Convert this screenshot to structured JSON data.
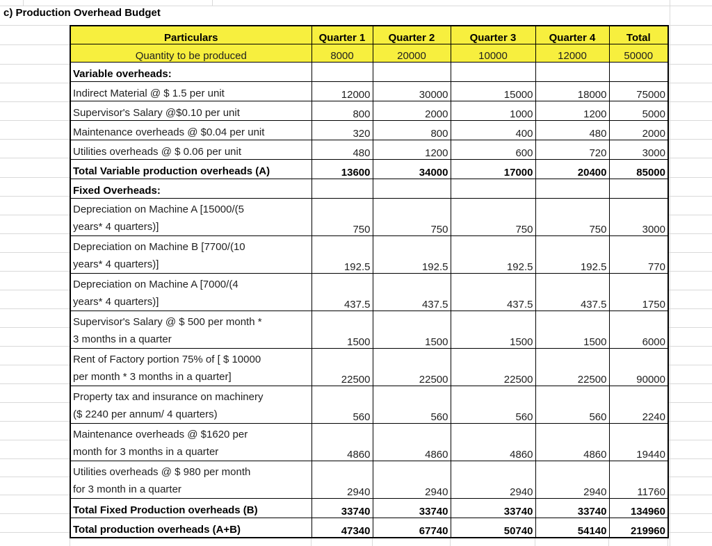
{
  "sheet": {
    "title": "c) Production Overhead Budget"
  },
  "colors": {
    "header_fill": "#f7ef3e",
    "cell_border": "#000000",
    "gridline": "#d9d9d9"
  },
  "table": {
    "columns": [
      "Particulars",
      "Quarter 1",
      "Quarter 2",
      "Quarter 3",
      "Quarter 4",
      "Total"
    ],
    "quantity_row": {
      "label": "Quantity to be produced",
      "values": [
        "8000",
        "20000",
        "10000",
        "12000",
        "50000"
      ]
    },
    "rows": [
      {
        "type": "section",
        "label": "Variable overheads:"
      },
      {
        "type": "item",
        "label": "Indirect Material @ $ 1.5 per unit",
        "values": [
          "12000",
          "30000",
          "15000",
          "18000",
          "75000"
        ]
      },
      {
        "type": "item",
        "label": "Supervisor's Salary @$0.10 per unit",
        "values": [
          "800",
          "2000",
          "1000",
          "1200",
          "5000"
        ]
      },
      {
        "type": "item",
        "label": "Maintenance overheads @ $0.04 per unit",
        "values": [
          "320",
          "800",
          "400",
          "480",
          "2000"
        ]
      },
      {
        "type": "item",
        "label": "Utilities overheads @ $ 0.06 per unit",
        "values": [
          "480",
          "1200",
          "600",
          "720",
          "3000"
        ]
      },
      {
        "type": "total",
        "label": "Total Variable production overheads (A)",
        "values": [
          "13600",
          "34000",
          "17000",
          "20400",
          "85000"
        ]
      },
      {
        "type": "section",
        "label": "Fixed Overheads:"
      },
      {
        "type": "item2",
        "label": "Depreciation on Machine A [15000/(5\nyears* 4 quarters)]",
        "values": [
          "750",
          "750",
          "750",
          "750",
          "3000"
        ]
      },
      {
        "type": "item2",
        "label": "Depreciation on Machine B [7700/(10\nyears* 4 quarters)]",
        "values": [
          "192.5",
          "192.5",
          "192.5",
          "192.5",
          "770"
        ]
      },
      {
        "type": "item2",
        "label": "Depreciation on Machine A [7000/(4\nyears* 4 quarters)]",
        "values": [
          "437.5",
          "437.5",
          "437.5",
          "437.5",
          "1750"
        ]
      },
      {
        "type": "item2",
        "label": "Supervisor's Salary @ $ 500 per month *\n3 months in a quarter",
        "values": [
          "1500",
          "1500",
          "1500",
          "1500",
          "6000"
        ]
      },
      {
        "type": "item2",
        "label": "Rent of Factory portion 75% of [ $ 10000\nper month * 3 months in a quarter]",
        "values": [
          "22500",
          "22500",
          "22500",
          "22500",
          "90000"
        ]
      },
      {
        "type": "item2",
        "label": "Property tax and insurance on machinery\n($ 2240 per annum/ 4 quarters)",
        "values": [
          "560",
          "560",
          "560",
          "560",
          "2240"
        ]
      },
      {
        "type": "item2",
        "label": "Maintenance overheads @ $1620 per\nmonth for 3 months in a quarter",
        "values": [
          "4860",
          "4860",
          "4860",
          "4860",
          "19440"
        ]
      },
      {
        "type": "item2",
        "label": "Utilities overheads @ $ 980 per month\nfor 3 month in a quarter",
        "values": [
          "2940",
          "2940",
          "2940",
          "2940",
          "11760"
        ]
      },
      {
        "type": "total",
        "label": "Total Fixed Production overheads (B)",
        "values": [
          "33740",
          "33740",
          "33740",
          "33740",
          "134960"
        ]
      },
      {
        "type": "total",
        "label": "Total production overheads (A+B)",
        "values": [
          "47340",
          "67740",
          "50740",
          "54140",
          "219960"
        ]
      }
    ]
  }
}
